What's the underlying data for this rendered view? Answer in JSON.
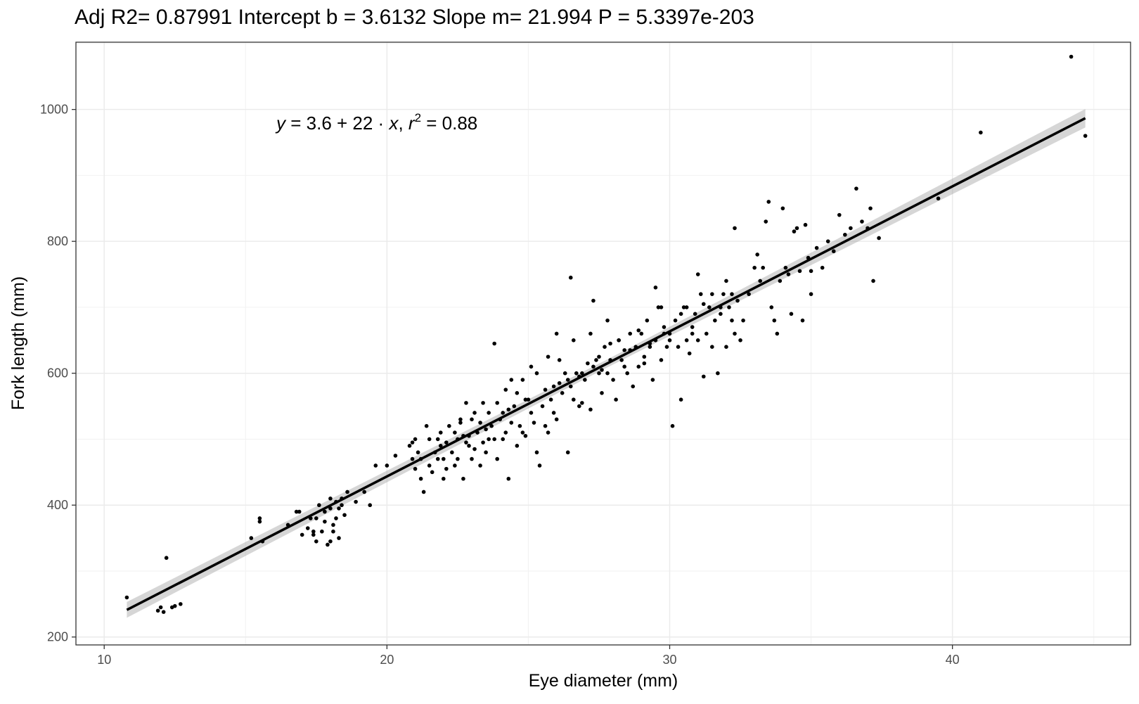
{
  "chart_data": {
    "type": "scatter",
    "title": "Adj R2=  0.87991 Intercept b =  3.6132 Slope m=  21.994 P =  5.3397e-203",
    "xlabel": "Eye diameter (mm)",
    "ylabel": "Fork length (mm)",
    "xlim": [
      9,
      46.3
    ],
    "ylim": [
      188,
      1102
    ],
    "xticks": [
      10,
      20,
      30,
      40
    ],
    "yticks": [
      200,
      400,
      600,
      800,
      1000
    ],
    "grid": true,
    "annotation": {
      "y": "y",
      "eq": " = 3.6 + 22 · ",
      "x": "x",
      "sep": ",  ",
      "r": "r",
      "exp": "2",
      "rval": " = 0.88"
    },
    "fit": {
      "intercept": 3.6132,
      "slope": 21.994,
      "x_range": [
        10.8,
        44.7
      ],
      "ci_halfwidth": [
        12,
        6,
        14
      ]
    },
    "points": [
      [
        10.8,
        260
      ],
      [
        11.9,
        240
      ],
      [
        12.0,
        245
      ],
      [
        12.1,
        238
      ],
      [
        12.2,
        320
      ],
      [
        12.4,
        245
      ],
      [
        12.5,
        247
      ],
      [
        12.7,
        250
      ],
      [
        15.2,
        350
      ],
      [
        15.5,
        380
      ],
      [
        15.5,
        375
      ],
      [
        15.6,
        345
      ],
      [
        16.5,
        370
      ],
      [
        16.8,
        390
      ],
      [
        16.9,
        390
      ],
      [
        17.0,
        355
      ],
      [
        17.2,
        365
      ],
      [
        17.3,
        380
      ],
      [
        17.4,
        355
      ],
      [
        17.4,
        360
      ],
      [
        17.5,
        380
      ],
      [
        17.5,
        345
      ],
      [
        17.6,
        400
      ],
      [
        17.7,
        360
      ],
      [
        17.8,
        390
      ],
      [
        17.8,
        375
      ],
      [
        17.9,
        340
      ],
      [
        18.0,
        410
      ],
      [
        18.0,
        395
      ],
      [
        18.0,
        345
      ],
      [
        18.1,
        360
      ],
      [
        18.1,
        370
      ],
      [
        18.2,
        405
      ],
      [
        18.2,
        380
      ],
      [
        18.3,
        395
      ],
      [
        18.3,
        350
      ],
      [
        18.4,
        400
      ],
      [
        18.4,
        410
      ],
      [
        18.5,
        385
      ],
      [
        18.6,
        420
      ],
      [
        18.9,
        405
      ],
      [
        19.2,
        420
      ],
      [
        19.4,
        400
      ],
      [
        19.6,
        460
      ],
      [
        20.0,
        460
      ],
      [
        20.3,
        475
      ],
      [
        20.8,
        490
      ],
      [
        20.9,
        470
      ],
      [
        21.0,
        500
      ],
      [
        21.0,
        455
      ],
      [
        21.1,
        480
      ],
      [
        21.2,
        440
      ],
      [
        21.3,
        420
      ],
      [
        21.4,
        520
      ],
      [
        21.5,
        460
      ],
      [
        21.6,
        450
      ],
      [
        21.7,
        480
      ],
      [
        21.8,
        500
      ],
      [
        21.9,
        510
      ],
      [
        22.0,
        440
      ],
      [
        22.0,
        470
      ],
      [
        22.1,
        495
      ],
      [
        22.2,
        520
      ],
      [
        22.3,
        480
      ],
      [
        22.4,
        460
      ],
      [
        22.5,
        500
      ],
      [
        22.5,
        470
      ],
      [
        22.6,
        525
      ],
      [
        22.7,
        440
      ],
      [
        22.8,
        555
      ],
      [
        22.9,
        505
      ],
      [
        23.0,
        470
      ],
      [
        23.0,
        530
      ],
      [
        23.1,
        485
      ],
      [
        23.2,
        510
      ],
      [
        23.3,
        460
      ],
      [
        23.4,
        495
      ],
      [
        23.5,
        480
      ],
      [
        23.6,
        540
      ],
      [
        23.7,
        520
      ],
      [
        23.8,
        500
      ],
      [
        23.9,
        470
      ],
      [
        24.0,
        530
      ],
      [
        24.1,
        500
      ],
      [
        24.2,
        510
      ],
      [
        24.3,
        440
      ],
      [
        24.4,
        525
      ],
      [
        24.5,
        550
      ],
      [
        24.6,
        490
      ],
      [
        24.7,
        520
      ],
      [
        24.8,
        510
      ],
      [
        24.9,
        505
      ],
      [
        25.0,
        560
      ],
      [
        25.1,
        540
      ],
      [
        25.2,
        525
      ],
      [
        25.3,
        480
      ],
      [
        25.4,
        460
      ],
      [
        25.5,
        550
      ],
      [
        25.6,
        520
      ],
      [
        25.7,
        510
      ],
      [
        25.8,
        560
      ],
      [
        25.9,
        540
      ],
      [
        26.0,
        530
      ],
      [
        26.1,
        585
      ],
      [
        26.2,
        570
      ],
      [
        26.3,
        600
      ],
      [
        26.4,
        480
      ],
      [
        26.5,
        580
      ],
      [
        26.6,
        560
      ],
      [
        26.7,
        600
      ],
      [
        26.8,
        550
      ],
      [
        26.9,
        555
      ],
      [
        27.0,
        590
      ],
      [
        27.1,
        615
      ],
      [
        27.2,
        545
      ],
      [
        27.3,
        610
      ],
      [
        27.4,
        620
      ],
      [
        27.5,
        600
      ],
      [
        27.6,
        570
      ],
      [
        27.7,
        640
      ],
      [
        27.8,
        600
      ],
      [
        27.9,
        620
      ],
      [
        28.0,
        590
      ],
      [
        28.1,
        560
      ],
      [
        28.2,
        650
      ],
      [
        28.3,
        620
      ],
      [
        28.4,
        635
      ],
      [
        28.5,
        600
      ],
      [
        28.6,
        660
      ],
      [
        28.7,
        580
      ],
      [
        28.8,
        640
      ],
      [
        28.9,
        610
      ],
      [
        29.0,
        660
      ],
      [
        29.1,
        625
      ],
      [
        29.2,
        680
      ],
      [
        29.3,
        640
      ],
      [
        29.4,
        590
      ],
      [
        29.5,
        650
      ],
      [
        29.6,
        700
      ],
      [
        29.7,
        620
      ],
      [
        29.8,
        670
      ],
      [
        29.9,
        640
      ],
      [
        30.0,
        660
      ],
      [
        30.1,
        520
      ],
      [
        30.2,
        680
      ],
      [
        30.3,
        640
      ],
      [
        30.4,
        560
      ],
      [
        30.5,
        700
      ],
      [
        30.6,
        650
      ],
      [
        30.7,
        630
      ],
      [
        30.8,
        670
      ],
      [
        30.9,
        690
      ],
      [
        31.0,
        650
      ],
      [
        31.1,
        720
      ],
      [
        31.2,
        595
      ],
      [
        31.3,
        660
      ],
      [
        31.4,
        700
      ],
      [
        31.5,
        640
      ],
      [
        31.6,
        680
      ],
      [
        31.7,
        600
      ],
      [
        31.8,
        690
      ],
      [
        31.9,
        720
      ],
      [
        32.0,
        640
      ],
      [
        32.1,
        700
      ],
      [
        32.2,
        680
      ],
      [
        32.3,
        660
      ],
      [
        32.4,
        710
      ],
      [
        32.5,
        650
      ],
      [
        32.6,
        680
      ],
      [
        32.8,
        720
      ],
      [
        33.0,
        760
      ],
      [
        33.1,
        780
      ],
      [
        33.2,
        740
      ],
      [
        33.3,
        760
      ],
      [
        33.4,
        830
      ],
      [
        33.5,
        860
      ],
      [
        33.6,
        700
      ],
      [
        33.7,
        680
      ],
      [
        33.8,
        660
      ],
      [
        33.9,
        740
      ],
      [
        34.0,
        850
      ],
      [
        34.1,
        760
      ],
      [
        34.2,
        750
      ],
      [
        34.3,
        690
      ],
      [
        34.4,
        815
      ],
      [
        34.5,
        820
      ],
      [
        34.6,
        755
      ],
      [
        34.7,
        680
      ],
      [
        34.8,
        825
      ],
      [
        34.9,
        775
      ],
      [
        35.0,
        720
      ],
      [
        35.0,
        755
      ],
      [
        35.2,
        790
      ],
      [
        35.4,
        760
      ],
      [
        35.6,
        800
      ],
      [
        35.8,
        785
      ],
      [
        36.0,
        840
      ],
      [
        36.2,
        810
      ],
      [
        36.4,
        820
      ],
      [
        36.6,
        880
      ],
      [
        36.8,
        830
      ],
      [
        37.0,
        820
      ],
      [
        37.1,
        850
      ],
      [
        37.2,
        740
      ],
      [
        37.4,
        805
      ],
      [
        39.5,
        865
      ],
      [
        41.0,
        965
      ],
      [
        44.2,
        1080
      ],
      [
        44.7,
        960
      ],
      [
        23.8,
        645
      ],
      [
        26.5,
        745
      ],
      [
        27.3,
        710
      ],
      [
        27.8,
        680
      ],
      [
        29.5,
        730
      ],
      [
        31.0,
        750
      ],
      [
        32.3,
        820
      ],
      [
        22.1,
        455
      ],
      [
        22.6,
        530
      ],
      [
        23.4,
        555
      ],
      [
        24.2,
        575
      ],
      [
        24.8,
        590
      ],
      [
        25.3,
        600
      ],
      [
        26.1,
        620
      ],
      [
        25.7,
        625
      ],
      [
        24.6,
        570
      ],
      [
        23.1,
        540
      ],
      [
        22.9,
        490
      ],
      [
        21.8,
        470
      ],
      [
        21.5,
        500
      ],
      [
        22.7,
        505
      ],
      [
        23.6,
        500
      ],
      [
        24.1,
        540
      ],
      [
        24.9,
        560
      ],
      [
        25.6,
        575
      ],
      [
        26.4,
        590
      ],
      [
        26.9,
        600
      ],
      [
        27.6,
        605
      ],
      [
        28.4,
        610
      ],
      [
        29.1,
        615
      ],
      [
        29.8,
        660
      ],
      [
        30.4,
        690
      ],
      [
        31.2,
        705
      ],
      [
        31.8,
        700
      ],
      [
        32.2,
        720
      ],
      [
        30.8,
        660
      ],
      [
        30.0,
        650
      ],
      [
        29.3,
        645
      ],
      [
        28.6,
        635
      ],
      [
        27.9,
        645
      ],
      [
        27.2,
        660
      ],
      [
        26.6,
        650
      ],
      [
        26.0,
        660
      ],
      [
        25.1,
        610
      ],
      [
        24.4,
        590
      ],
      [
        23.9,
        555
      ],
      [
        23.3,
        525
      ],
      [
        22.4,
        510
      ],
      [
        21.9,
        490
      ],
      [
        21.2,
        470
      ],
      [
        20.9,
        495
      ],
      [
        22.8,
        495
      ],
      [
        23.5,
        515
      ],
      [
        24.3,
        545
      ],
      [
        25.9,
        580
      ],
      [
        26.8,
        595
      ],
      [
        27.5,
        625
      ],
      [
        28.2,
        650
      ],
      [
        28.9,
        665
      ],
      [
        29.7,
        700
      ],
      [
        30.6,
        700
      ],
      [
        31.5,
        720
      ],
      [
        32.0,
        740
      ]
    ]
  }
}
